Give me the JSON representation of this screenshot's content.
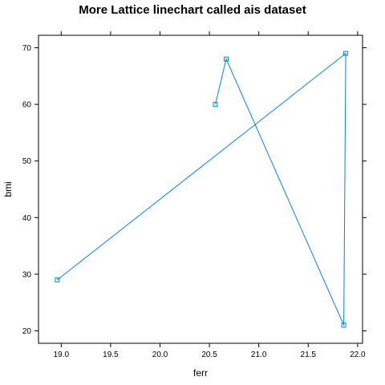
{
  "chart_data": {
    "type": "line",
    "title": "More Lattice linechart called ais dataset",
    "xlabel": "ferr",
    "ylabel": "bmi",
    "xlim": [
      18.77,
      22.05
    ],
    "ylim": [
      17.8,
      72.2
    ],
    "xticks": [
      19.0,
      19.5,
      20.0,
      20.5,
      21.0,
      21.5,
      22.0
    ],
    "xtick_labels": [
      "19.0",
      "19.5",
      "20.0",
      "20.5",
      "21.0",
      "21.5",
      "22.0"
    ],
    "yticks": [
      20,
      30,
      40,
      50,
      60,
      70
    ],
    "ytick_labels": [
      "20",
      "30",
      "40",
      "50",
      "60",
      "70"
    ],
    "grid": false,
    "line_color": "#0080ff",
    "series": [
      {
        "x": [
          20.56,
          20.67,
          21.86,
          21.88,
          18.96
        ],
        "y": [
          60,
          68,
          21,
          69,
          29
        ]
      }
    ]
  }
}
